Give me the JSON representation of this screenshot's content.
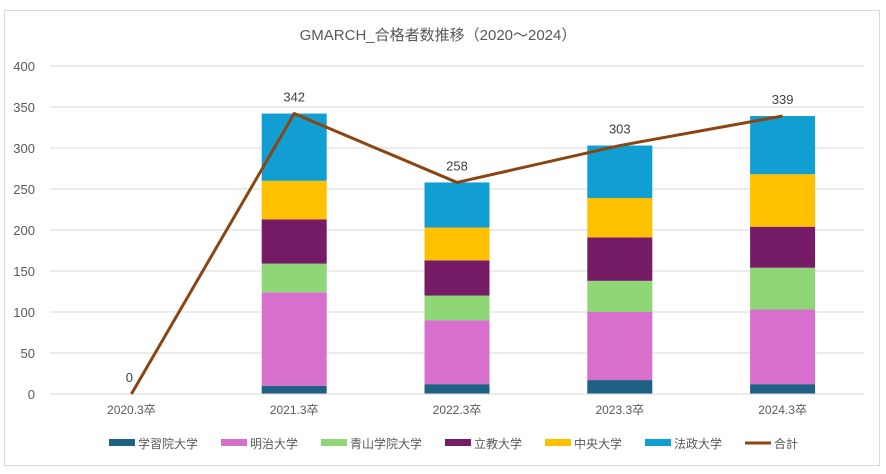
{
  "chart_data": {
    "type": "bar",
    "stacked": true,
    "title": "GMARCH_合格者数推移（2020～2024）",
    "xlabel": "",
    "ylabel": "",
    "ylim": [
      0,
      400
    ],
    "yticks": [
      0,
      50,
      100,
      150,
      200,
      250,
      300,
      350,
      400
    ],
    "grid": true,
    "legend_position": "bottom",
    "categories": [
      "2020.3卒",
      "2021.3卒",
      "2022.3卒",
      "2023.3卒",
      "2024.3卒"
    ],
    "series": [
      {
        "name": "学習院大学",
        "color": "#1f6184",
        "values": [
          0,
          10,
          12,
          17,
          12
        ]
      },
      {
        "name": "明治大学",
        "color": "#d770cd",
        "values": [
          0,
          114,
          78,
          83,
          91
        ]
      },
      {
        "name": "青山学院大学",
        "color": "#8fd776",
        "values": [
          0,
          35,
          30,
          38,
          51
        ]
      },
      {
        "name": "立教大学",
        "color": "#761c66",
        "values": [
          0,
          54,
          43,
          53,
          50
        ]
      },
      {
        "name": "中央大学",
        "color": "#ffc000",
        "values": [
          0,
          47,
          40,
          48,
          64
        ]
      },
      {
        "name": "法政大学",
        "color": "#119fd3",
        "values": [
          0,
          82,
          55,
          64,
          71
        ]
      }
    ],
    "line_series": {
      "name": "合計",
      "color": "#8b4513",
      "values": [
        0,
        342,
        258,
        303,
        339
      ]
    },
    "data_labels": [
      "0",
      "342",
      "258",
      "303",
      "339"
    ]
  }
}
